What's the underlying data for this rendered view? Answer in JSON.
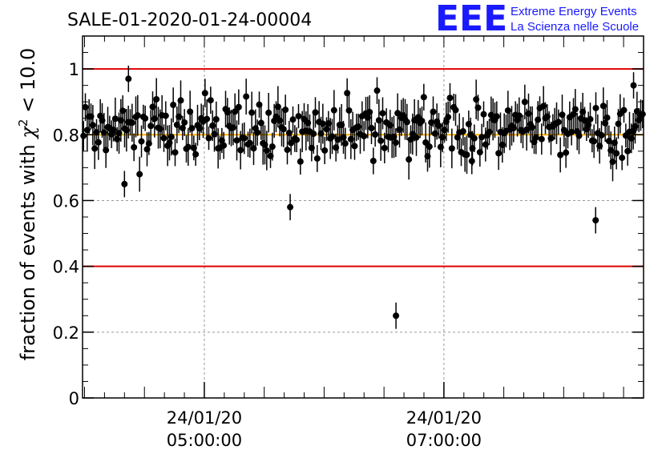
{
  "title": "SALE-01-2020-01-24-00004",
  "logo": {
    "mark": "EEE",
    "line1": "Extreme Energy Events",
    "line2": "La Scienza nelle Scuole",
    "color": "#1a1aff"
  },
  "colors": {
    "limit_lines": "#e00000",
    "mean_line": "#ffb000",
    "points": "#000000",
    "grid": "#999999"
  },
  "chart_data": {
    "type": "scatter",
    "ylabel_prefix": "fraction of events with ",
    "ylabel_symbol": "χ",
    "ylabel_sup": "2",
    "ylabel_suffix": " < 10.0",
    "xlabel": "",
    "ylim": [
      0,
      1.1
    ],
    "xlim": [
      "2020-01-24 03:59:00",
      "2020-01-24 08:40:00"
    ],
    "yticks": [
      "0",
      "0.2",
      "0.4",
      "0.6",
      "0.8",
      "1"
    ],
    "xticks": [
      {
        "date": "24/01/20",
        "time": "05:00:00",
        "at": "2020-01-24 05:00:00"
      },
      {
        "date": "24/01/20",
        "time": "07:00:00",
        "at": "2020-01-24 07:00:00"
      }
    ],
    "reference_lines": {
      "upper": 1.0,
      "lower": 0.4,
      "mean": 0.8
    },
    "grid": true,
    "seed": 7,
    "num_points": 300,
    "typical_error": 0.05,
    "outliers": [
      {
        "x": "2020-01-24 04:22:00",
        "y": 0.97
      },
      {
        "x": "2020-01-24 04:20:00",
        "y": 0.65
      },
      {
        "x": "2020-01-24 05:43:00",
        "y": 0.58
      },
      {
        "x": "2020-01-24 06:36:00",
        "y": 0.25
      },
      {
        "x": "2020-01-24 07:14:00",
        "y": 0.72
      },
      {
        "x": "2020-01-24 08:16:00",
        "y": 0.54
      },
      {
        "x": "2020-01-24 08:35:00",
        "y": 0.95
      }
    ]
  }
}
